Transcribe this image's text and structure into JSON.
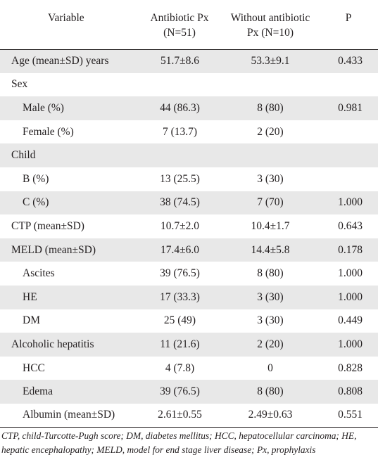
{
  "table": {
    "headers": {
      "variable": "Variable",
      "antibiotic_line1": "Antibiotic Px",
      "antibiotic_line2": "(N=51)",
      "without_line1": "Without antibiotic",
      "without_line2": "Px (N=10)",
      "p": "P"
    },
    "rows": [
      {
        "variable": "Age (mean±SD) years",
        "antibiotic": "51.7±8.6",
        "without": "53.3±9.1",
        "p": "0.433"
      },
      {
        "variable": "Sex",
        "antibiotic": "",
        "without": "",
        "p": ""
      },
      {
        "variable": "Male (%)",
        "antibiotic": "44 (86.3)",
        "without": "8 (80)",
        "p": "0.981"
      },
      {
        "variable": "Female (%)",
        "antibiotic": "7 (13.7)",
        "without": "2 (20)",
        "p": ""
      },
      {
        "variable": "Child",
        "antibiotic": "",
        "without": "",
        "p": ""
      },
      {
        "variable": "B (%)",
        "antibiotic": "13 (25.5)",
        "without": "3 (30)",
        "p": ""
      },
      {
        "variable": "C (%)",
        "antibiotic": "38 (74.5)",
        "without": "7 (70)",
        "p": "1.000"
      },
      {
        "variable": "CTP (mean±SD)",
        "antibiotic": "10.7±2.0",
        "without": "10.4±1.7",
        "p": "0.643"
      },
      {
        "variable": "MELD (mean±SD)",
        "antibiotic": "17.4±6.0",
        "without": "14.4±5.8",
        "p": "0.178"
      },
      {
        "variable": "Ascites",
        "antibiotic": "39 (76.5)",
        "without": "8 (80)",
        "p": "1.000"
      },
      {
        "variable": "HE",
        "antibiotic": "17 (33.3)",
        "without": "3 (30)",
        "p": "1.000"
      },
      {
        "variable": "DM",
        "antibiotic": "25 (49)",
        "without": "3 (30)",
        "p": "0.449"
      },
      {
        "variable": "Alcoholic hepatitis",
        "antibiotic": "11 (21.6)",
        "without": "2 (20)",
        "p": "1.000"
      },
      {
        "variable": "HCC",
        "antibiotic": "4 (7.8)",
        "without": "0",
        "p": "0.828"
      },
      {
        "variable": "Edema",
        "antibiotic": "39 (76.5)",
        "without": "8 (80)",
        "p": "0.808"
      },
      {
        "variable": "Albumin (mean±SD)",
        "antibiotic": "2.61±0.55",
        "without": "2.49±0.63",
        "p": "0.551"
      }
    ]
  },
  "footnote": "CTP, child-Turcotte-Pugh score; DM, diabetes mellitus; HCC, hepatocellular carcinoma; HE, hepatic encephalopathy; MELD, model for end stage liver disease; Px, prophylaxis",
  "colors": {
    "shaded_row": "#e8e8e8",
    "text": "#231f20",
    "rule": "#231f20"
  }
}
